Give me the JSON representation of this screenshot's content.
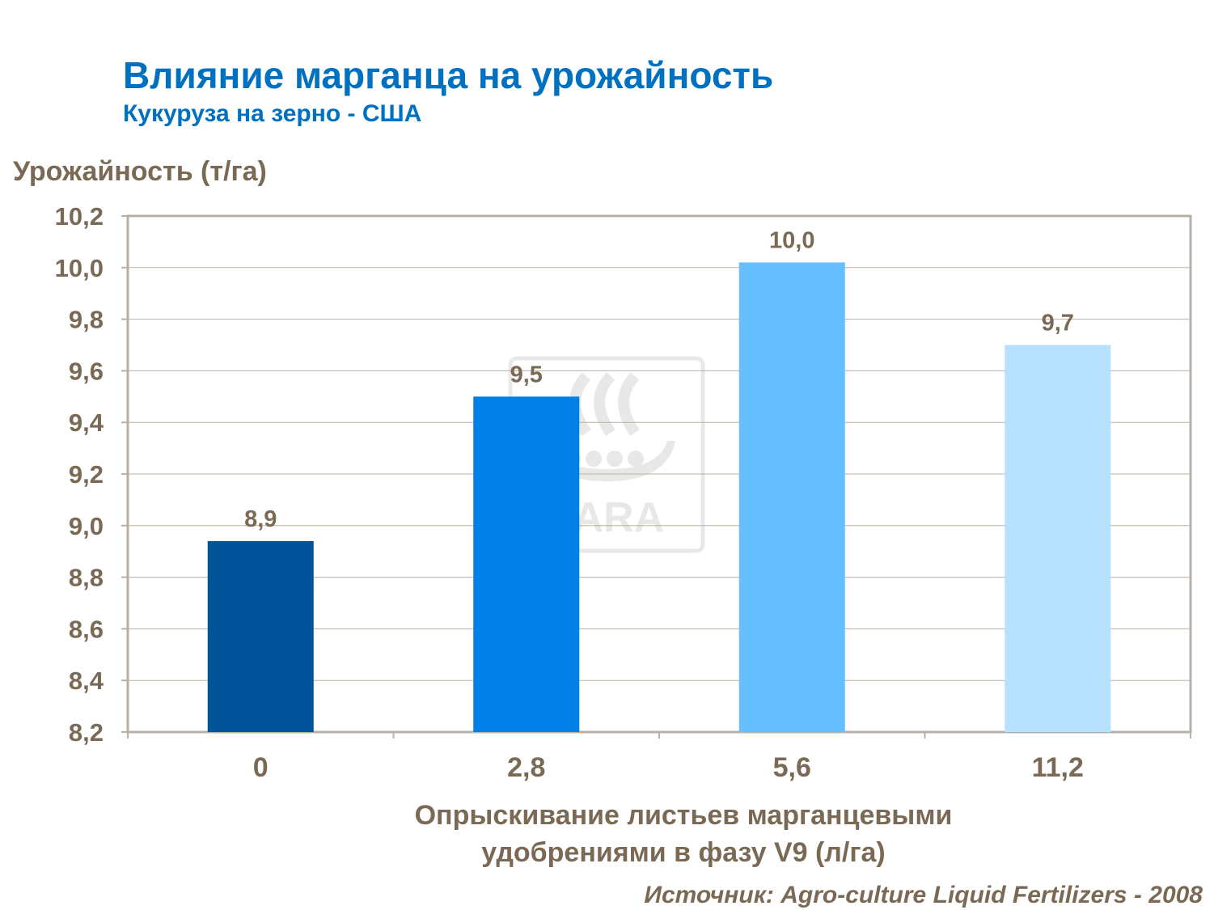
{
  "chart_data": {
    "type": "bar",
    "title": "Влияние марганца на урожайность",
    "subtitle": "Кукуруза на зерно - США",
    "ylabel": "Урожайность (т/га)",
    "xlabel_lines": [
      "Опрыскивание листьев марганцевыми",
      "удобрениями в фазу V9 (л/га)"
    ],
    "categories": [
      "0",
      "2,8",
      "5,6",
      "11,2"
    ],
    "values": [
      8.94,
      9.5,
      10.02,
      9.7
    ],
    "data_labels": [
      "8,9",
      "9,5",
      "10,0",
      "9,7"
    ],
    "colors": [
      "#00559A",
      "#0080E6",
      "#66BFFF",
      "#B8E0FF"
    ],
    "ylim": [
      8.2,
      10.2
    ],
    "yticks": [
      "8,2",
      "8,4",
      "8,6",
      "8,8",
      "9,0",
      "9,2",
      "9,4",
      "9,6",
      "9,8",
      "10,0",
      "10,2"
    ],
    "grid": true,
    "source": "Источник: Agro-culture Liquid Fertilizers - 2008",
    "watermark": "YARA"
  }
}
